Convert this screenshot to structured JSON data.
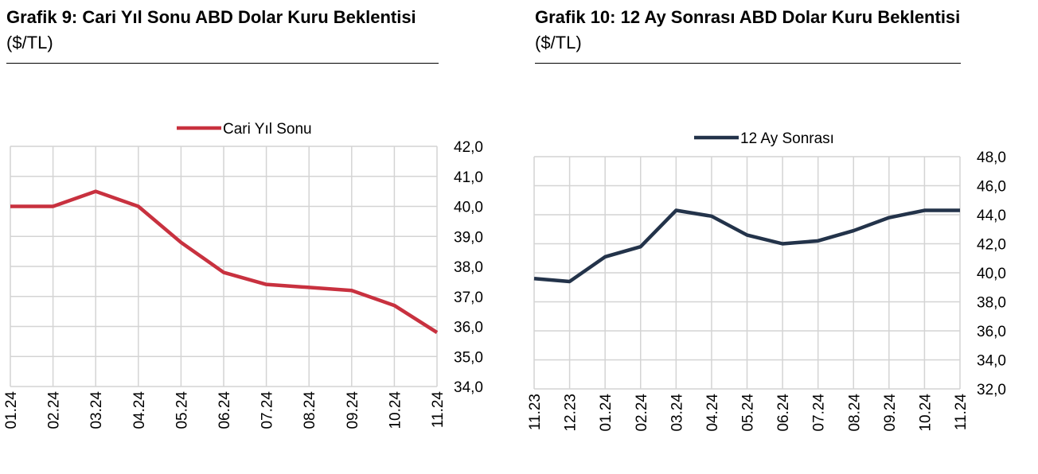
{
  "chart_data": [
    {
      "type": "line",
      "title_bold": "Grafik 9: Cari Yıl Sonu ABD Dolar Kuru Beklentisi",
      "title_unit": "($/TL)",
      "categories": [
        "01.24",
        "02.24",
        "03.24",
        "04.24",
        "05.24",
        "06.24",
        "07.24",
        "08.24",
        "09.24",
        "10.24",
        "11.24"
      ],
      "series": [
        {
          "name": "Cari Yıl Sonu",
          "color": "#c8313f",
          "values": [
            40.0,
            40.0,
            40.5,
            40.0,
            38.8,
            37.8,
            37.4,
            37.3,
            37.2,
            36.7,
            35.8
          ]
        }
      ],
      "yticks": [
        "42,0",
        "41,0",
        "40,0",
        "39,0",
        "38,0",
        "37,0",
        "36,0",
        "35,0",
        "34,0"
      ],
      "ylim": [
        34,
        42
      ],
      "y_axis_side": "right",
      "grid": true,
      "legend": "top-center"
    },
    {
      "type": "line",
      "title_bold": "Grafik 10: 12 Ay Sonrası ABD Dolar Kuru Beklentisi",
      "title_unit": "($/TL)",
      "categories": [
        "11.23",
        "12.23",
        "01.24",
        "02.24",
        "03.24",
        "04.24",
        "05.24",
        "06.24",
        "07.24",
        "08.24",
        "09.24",
        "10.24",
        "11.24"
      ],
      "series": [
        {
          "name": "12 Ay Sonrası",
          "color": "#23334a",
          "values": [
            39.6,
            39.4,
            41.1,
            41.8,
            44.3,
            43.9,
            42.6,
            42.0,
            42.2,
            42.9,
            43.8,
            44.3,
            44.3
          ]
        }
      ],
      "yticks": [
        "48,0",
        "46,0",
        "44,0",
        "42,0",
        "40,0",
        "38,0",
        "36,0",
        "34,0",
        "32,0"
      ],
      "ylim": [
        32,
        48
      ],
      "y_axis_side": "right",
      "grid": true,
      "legend": "top-center"
    }
  ]
}
